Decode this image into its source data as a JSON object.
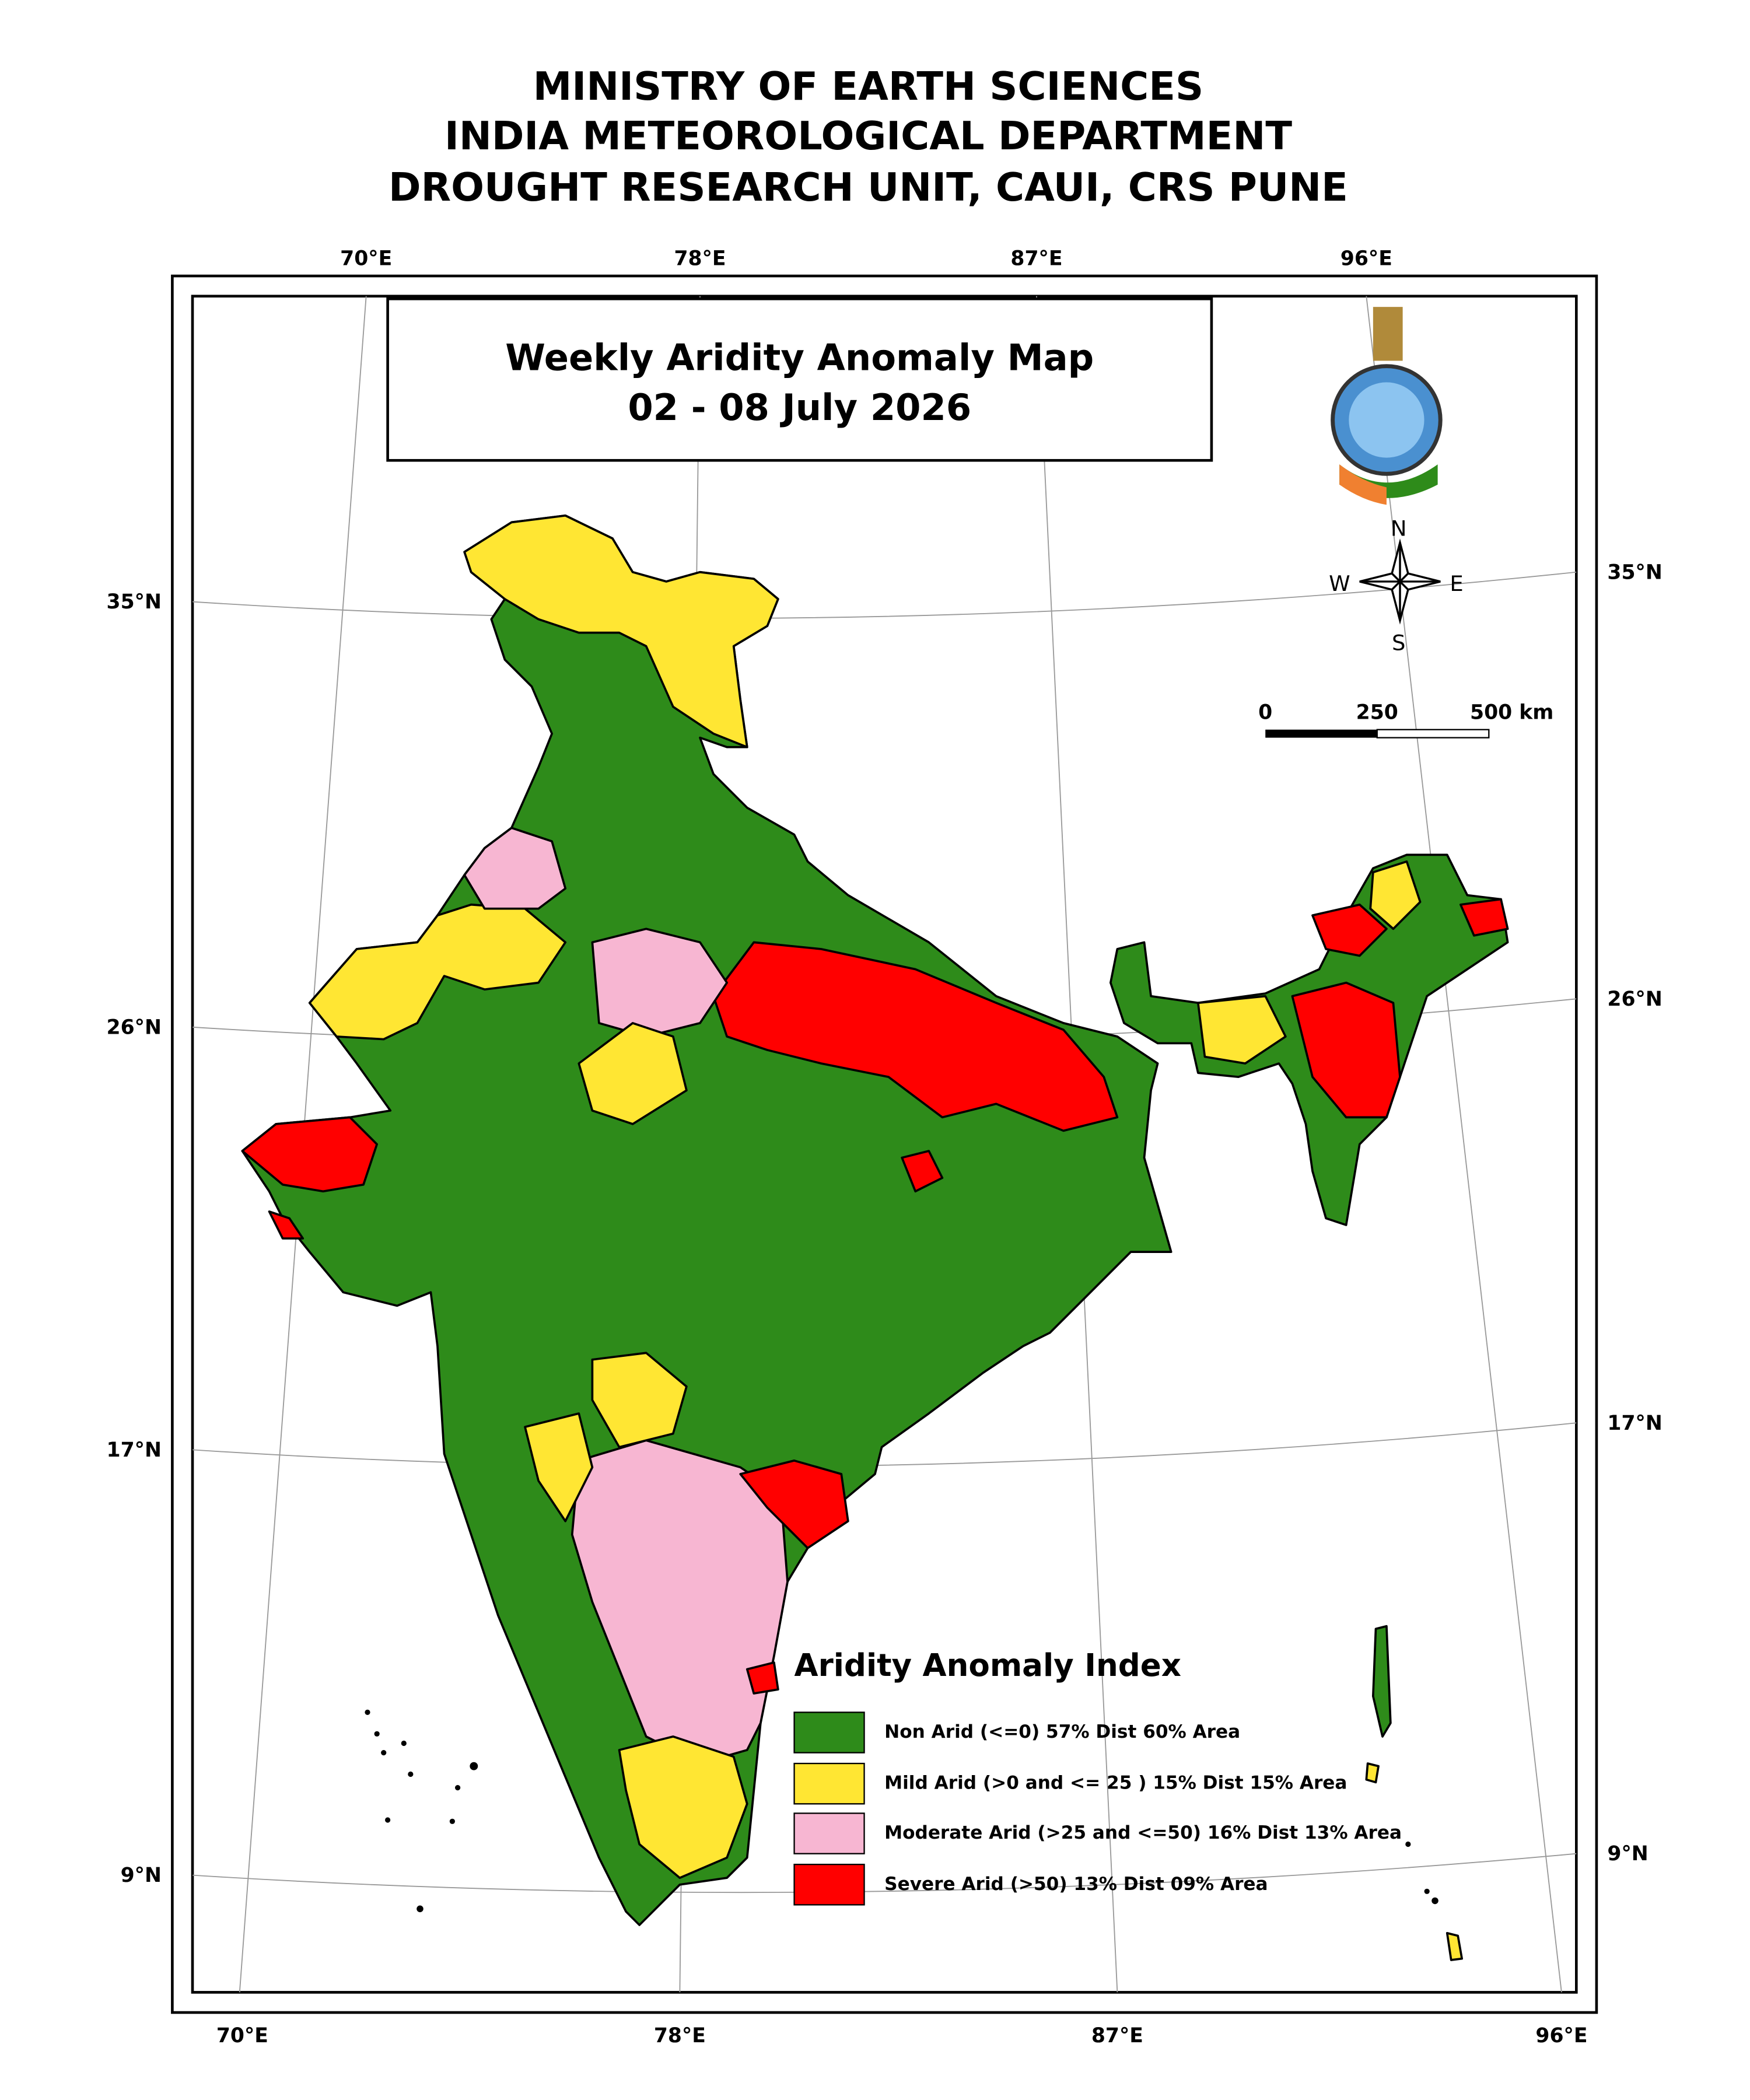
{
  "header": {
    "lines": [
      "MINISTRY OF EARTH SCIENCES",
      "INDIA METEOROLOGICAL DEPARTMENT",
      "DROUGHT RESEARCH UNIT, CAUI, CRS PUNE"
    ]
  },
  "map": {
    "title": [
      "Weekly Aridity Anomaly Map",
      "02 - 08 July 2026"
    ],
    "longitude_labels_top": [
      "70°E",
      "78°E",
      "87°E",
      "96°E"
    ],
    "longitude_labels_bottom": [
      "70°E",
      "78°E",
      "87°E",
      "96°E"
    ],
    "latitude_labels_left": [
      "35°N",
      "26°N",
      "17°N",
      "9°N"
    ],
    "latitude_labels_right": [
      "35°N",
      "26°N",
      "17°N",
      "9°N"
    ],
    "compass": {
      "n": "N",
      "s": "S",
      "e": "E",
      "w": "W"
    },
    "scale_bar": {
      "labels": [
        "0",
        "250",
        "500 km"
      ]
    }
  },
  "legend": {
    "title": "Aridity Anomaly Index",
    "items": [
      {
        "label": "Non Arid (<=0) 57% Dist 60% Area",
        "color": "#2e8b1a"
      },
      {
        "label": "Mild Arid (>0 and <= 25 ) 15% Dist  15% Area",
        "color": "#ffe633"
      },
      {
        "label": "Moderate Arid (>25 and <=50) 16% Dist 13% Area",
        "color": "#f7b6d2"
      },
      {
        "label": "Severe Arid (>50) 13% Dist  09% Area",
        "color": "#ff0000"
      }
    ]
  }
}
